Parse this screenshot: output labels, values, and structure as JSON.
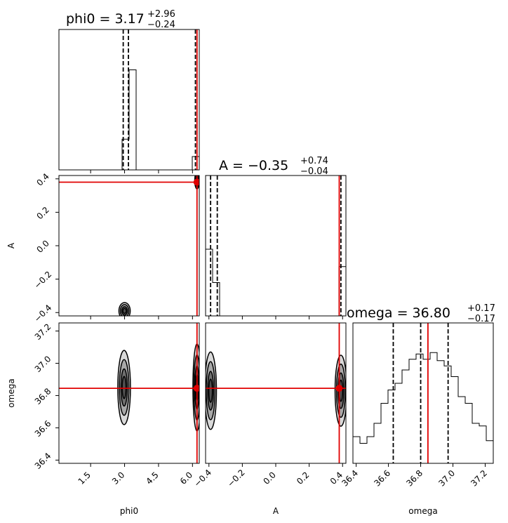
{
  "chart_data": {
    "type": "corner",
    "parameters": [
      "phi0",
      "A",
      "omega"
    ],
    "axis_labels": {
      "phi0": "phi0",
      "A": "A",
      "omega": "omega"
    },
    "ranges": {
      "phi0": [
        0.1,
        6.3
      ],
      "A": [
        -0.42,
        0.42
      ],
      "omega": [
        36.38,
        37.25
      ]
    },
    "ticks": {
      "phi0": [
        1.5,
        3.0,
        4.5,
        6.0
      ],
      "A": [
        -0.4,
        -0.2,
        0.0,
        0.2,
        0.4
      ],
      "omega": [
        36.4,
        36.6,
        36.8,
        37.0,
        37.2
      ]
    },
    "tick_labels": {
      "phi0": [
        "1.5",
        "3.0",
        "4.5",
        "6.0"
      ],
      "A": [
        "−0.4",
        "−0.2",
        "0.0",
        "0.2",
        "0.4"
      ],
      "omega": [
        "36.4",
        "36.6",
        "36.8",
        "37.0",
        "37.2"
      ]
    },
    "truths": {
      "phi0": 6.2,
      "A": 0.38,
      "omega": 36.845
    },
    "quantiles": {
      "phi0": [
        2.94,
        3.17,
        6.13
      ],
      "A": [
        -0.39,
        -0.35,
        0.39
      ],
      "omega": [
        36.63,
        36.8,
        36.97
      ]
    },
    "titles": {
      "phi0": {
        "text": "phi0 = 3.17",
        "plus": "+2.96",
        "minus": "−0.24"
      },
      "A": {
        "text": "A = −0.35",
        "plus": "+0.74",
        "minus": "−0.04"
      },
      "omega": {
        "text": "omega = 36.80",
        "plus": "+0.17",
        "minus": "−0.17"
      }
    },
    "histograms": {
      "phi0": {
        "edges_from": 0.1,
        "bin_width": 0.31,
        "counts": [
          0,
          0,
          0,
          0,
          0,
          0,
          0,
          0,
          0,
          0.23,
          0.75,
          0,
          0,
          0,
          0,
          0,
          0,
          0,
          0,
          0.1,
          1.0
        ]
      },
      "A": {
        "edges_from": -0.42,
        "bin_width": 0.042,
        "counts": [
          0.5,
          0.25,
          0,
          0,
          0,
          0,
          0,
          0,
          0,
          0,
          0,
          0,
          0,
          0,
          0,
          0,
          0,
          0,
          0,
          0.37,
          0.07
        ]
      },
      "omega": {
        "edges_from": 36.38,
        "bin_width": 0.0435,
        "counts": [
          0.2,
          0.15,
          0.2,
          0.3,
          0.45,
          0.55,
          0.6,
          0.7,
          0.78,
          0.82,
          0.78,
          0.83,
          0.77,
          0.73,
          0.65,
          0.5,
          0.45,
          0.3,
          0.28,
          0.17,
          0.15,
          0.2
        ]
      }
    },
    "contour_blobs": {
      "phi0_A": [
        {
          "x": 3.0,
          "y": -0.39,
          "sx": 0.25,
          "sy": 0.05
        },
        {
          "x": 6.2,
          "y": 0.39,
          "sx": 0.1,
          "sy": 0.05
        }
      ],
      "phi0_omega": [
        {
          "x": 2.98,
          "y": 36.85,
          "sx": 0.28,
          "sy": 0.23
        },
        {
          "x": 6.2,
          "y": 36.85,
          "sx": 0.18,
          "sy": 0.27
        }
      ],
      "A_omega": [
        {
          "x": -0.39,
          "y": 36.83,
          "sx": 0.035,
          "sy": 0.24
        },
        {
          "x": 0.39,
          "y": 36.83,
          "sx": 0.035,
          "sy": 0.22
        }
      ]
    }
  }
}
